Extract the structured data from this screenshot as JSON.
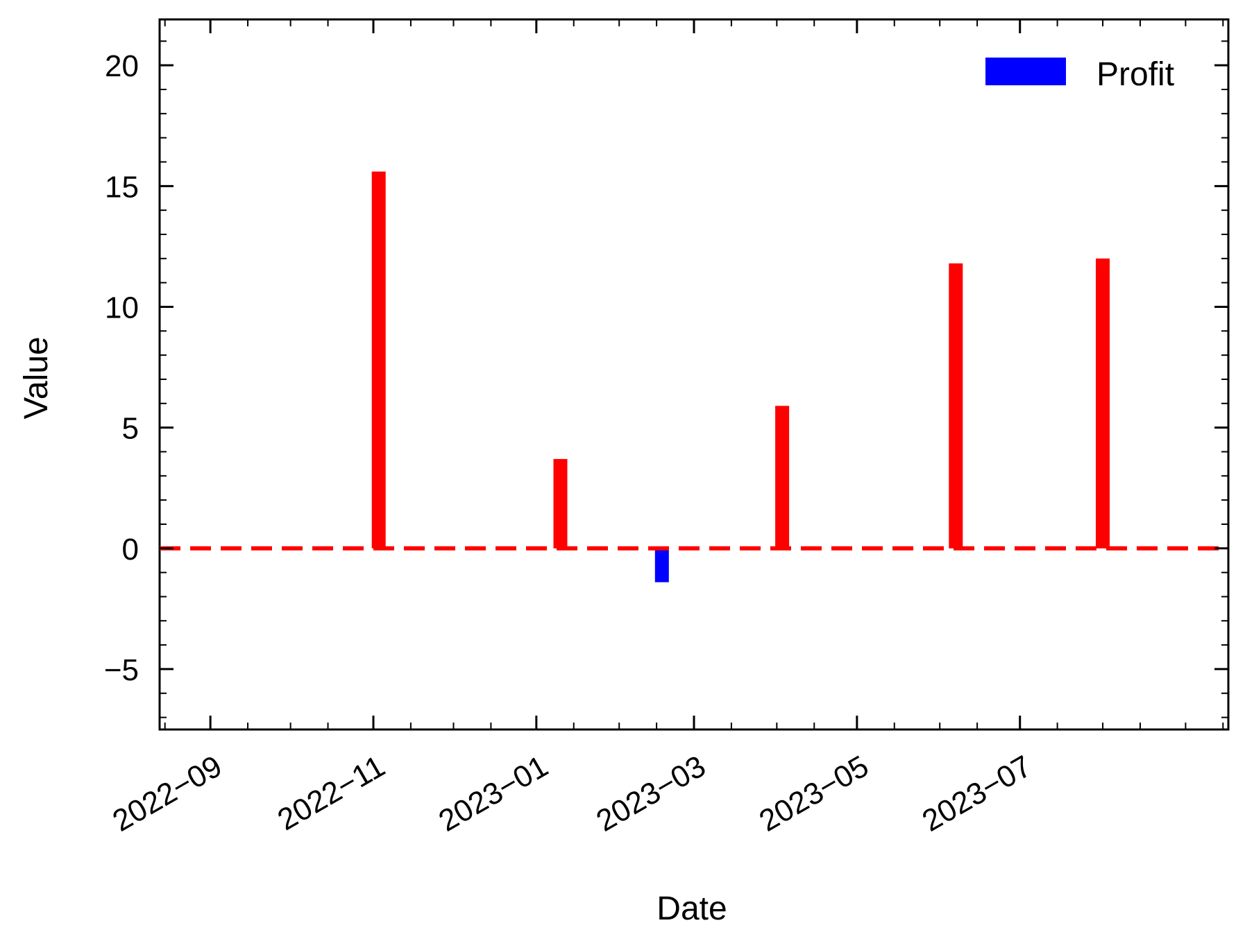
{
  "chart_data": {
    "type": "bar",
    "title": "",
    "xlabel": "Date",
    "ylabel": "Value",
    "x_axis_type": "date",
    "xlim": [
      "2022-08-13",
      "2023-09-17"
    ],
    "ylim": [
      -7.5,
      21.9
    ],
    "x_ticks": [
      "2022-09-01",
      "2022-11-01",
      "2023-01-01",
      "2023-03-01",
      "2023-05-01",
      "2023-07-01"
    ],
    "x_tick_labels": [
      "2022−09",
      "2022−11",
      "2023−01",
      "2023−03",
      "2023−05",
      "2023−07"
    ],
    "y_ticks": [
      -5,
      0,
      5,
      10,
      15,
      20
    ],
    "y_tick_labels": [
      "−5",
      "0",
      "5",
      "10",
      "15",
      "20"
    ],
    "grid": false,
    "legend": {
      "placement": "upper-right",
      "entries": [
        {
          "label": "Profit",
          "color": "#0000ff"
        }
      ]
    },
    "series": [
      {
        "name": "Profit",
        "positive_color": "#ff0000",
        "negative_color": "#0000ff",
        "points": [
          {
            "date": "2022-11-03",
            "value": 15.6
          },
          {
            "date": "2023-01-10",
            "value": 3.7
          },
          {
            "date": "2023-02-17",
            "value": -1.4
          },
          {
            "date": "2023-04-03",
            "value": 5.9
          },
          {
            "date": "2023-06-07",
            "value": 11.8
          },
          {
            "date": "2023-08-01",
            "value": 12.0
          }
        ]
      }
    ],
    "reference_line": {
      "y": 0,
      "color": "#ff0000",
      "style": "dashed"
    }
  }
}
